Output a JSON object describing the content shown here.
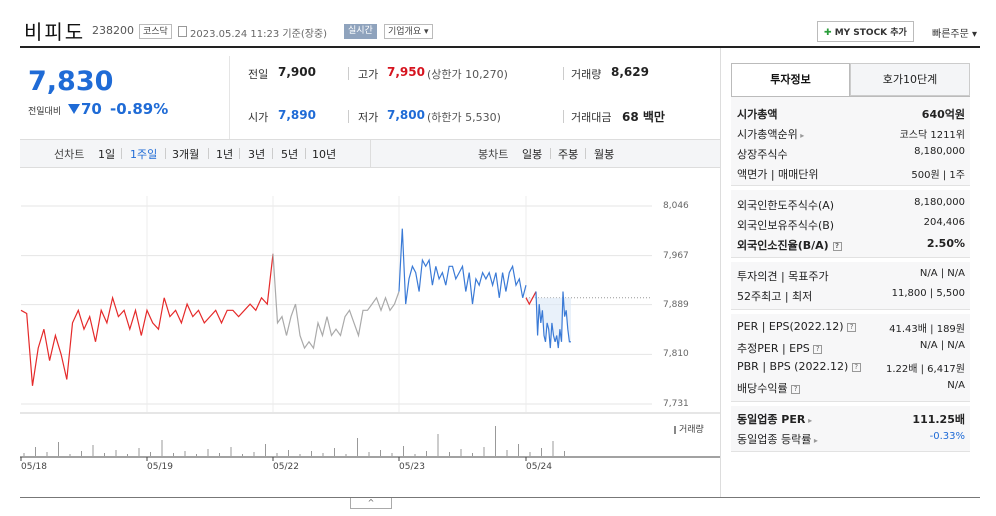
{
  "header": {
    "stock_name": "비피도",
    "stock_code": "238200",
    "market": "코스닥",
    "datetime": "2023.05.24 11:23 기준(장중)",
    "realtime": "실시간",
    "company_overview": "기업개요",
    "mystock_label": "MY STOCK 추가",
    "quick_order": "빠른주문"
  },
  "price": {
    "current": "7,830",
    "change_label": "전일대비",
    "change_amount": "70",
    "change_rate": "-0.89%"
  },
  "summary": {
    "prev_close_label": "전일",
    "prev_close": "7,900",
    "high_label": "고가",
    "high": "7,950",
    "upper_limit": "(상한가 10,270)",
    "volume_label": "거래량",
    "volume": "8,629",
    "open_label": "시가",
    "open": "7,890",
    "low_label": "저가",
    "low": "7,800",
    "lower_limit": "(하한가 5,530)",
    "amount_label": "거래대금",
    "amount": "68 백만"
  },
  "chart_tabs": {
    "line_label": "선차트",
    "periods": [
      "1일",
      "1주일",
      "3개월",
      "1년",
      "3년",
      "5년",
      "10년"
    ],
    "active_period": "1주일",
    "candle_label": "봉차트",
    "candles": [
      "일봉",
      "주봉",
      "월봉"
    ]
  },
  "chart_data": {
    "type": "line",
    "y_ticks": [
      "8,046",
      "7,967",
      "7,889",
      "7,810",
      "7,731"
    ],
    "ylim": [
      7731,
      8046
    ],
    "x_ticks": [
      "05/18",
      "05/19",
      "05/22",
      "05/23",
      "05/24"
    ],
    "volume_legend": "거래량",
    "series": [
      {
        "color": "#e52a2a",
        "values": [
          7880,
          7875,
          7760,
          7820,
          7850,
          7800,
          7840,
          7810,
          7770,
          7860,
          7880,
          7850,
          7870,
          7830,
          7880,
          7860,
          7900,
          7870,
          7880,
          7850,
          7880,
          7840,
          7880,
          7860,
          7850,
          7900,
          7870,
          7880,
          7860,
          7890,
          7870,
          7880,
          7860,
          7870,
          7880,
          7860,
          7880,
          7880,
          7870,
          7880,
          7890,
          7880,
          7900,
          7890,
          7970
        ]
      },
      {
        "color": "#aaaaaa",
        "values": [
          7970,
          7860,
          7870,
          7840,
          7870,
          7890,
          7840,
          7820,
          7830,
          7820,
          7860,
          7840,
          7870,
          7840,
          7850,
          7840,
          7870,
          7880,
          7860,
          7840,
          7880,
          7880,
          7890,
          7900,
          7880,
          7900,
          7880,
          7890,
          7910
        ]
      },
      {
        "color": "#3a7ad6",
        "values": [
          7910,
          8010,
          7890,
          7930,
          7950,
          7940,
          7910,
          7960,
          7950,
          7960,
          7920,
          7950,
          7930,
          7940,
          7920,
          7950,
          7950,
          7930,
          7940,
          7950,
          7910,
          7940,
          7890,
          7930,
          7920,
          7940,
          7930,
          7940,
          7920,
          7940,
          7900,
          7940,
          7910,
          7940,
          7950,
          7920,
          7930,
          7900,
          7920
        ]
      },
      {
        "color": "#e52a2a",
        "values": [
          7900,
          7890,
          7900,
          7910
        ]
      },
      {
        "color": "#3a7ad6",
        "values": [
          7910,
          7840,
          7890,
          7860,
          7880,
          7840,
          7830,
          7860,
          7850,
          7820,
          7860,
          7840,
          7830,
          7840,
          7820,
          7850,
          7830,
          7910,
          7870,
          7880,
          7850,
          7830,
          7830
        ]
      }
    ]
  },
  "invest_tabs": {
    "invest_info": "투자정보",
    "order_book": "호가10단계"
  },
  "invest_info": {
    "group1": [
      {
        "key": "시가총액",
        "value": "640억원",
        "bold": true
      },
      {
        "key": "시가총액순위",
        "value": "코스닥 1211위",
        "chev": true
      },
      {
        "key": "상장주식수",
        "value": "8,180,000"
      },
      {
        "key": "액면가 | 매매단위",
        "value": "500원 | 1주"
      }
    ],
    "group2": [
      {
        "key": "외국인한도주식수(A)",
        "value": "8,180,000"
      },
      {
        "key": "외국인보유주식수(B)",
        "value": "204,406"
      },
      {
        "key": "외국인소진율(B/A)",
        "value": "2.50%",
        "bold": true,
        "q": true
      }
    ],
    "group3": [
      {
        "key": "투자의견 | 목표주가",
        "value": "N/A | N/A"
      },
      {
        "key": "52주최고 | 최저",
        "value": "11,800 | 5,500"
      }
    ],
    "group4": [
      {
        "key": "PER | EPS(2022.12)",
        "value": "41.43배 | 189원",
        "q": true
      },
      {
        "key": "추정PER | EPS",
        "value": "N/A | N/A",
        "q": true
      },
      {
        "key": "PBR | BPS (2022.12)",
        "value": "1.22배 | 6,417원",
        "q": true
      },
      {
        "key": "배당수익률",
        "value": "N/A",
        "q": true
      }
    ],
    "group5": [
      {
        "key": "동일업종 PER",
        "value": "111.25배",
        "bold": true,
        "chev": true
      },
      {
        "key": "동일업종 등락률",
        "value": "-0.33%",
        "chev": true,
        "blue": true
      }
    ]
  },
  "collapse": "^"
}
